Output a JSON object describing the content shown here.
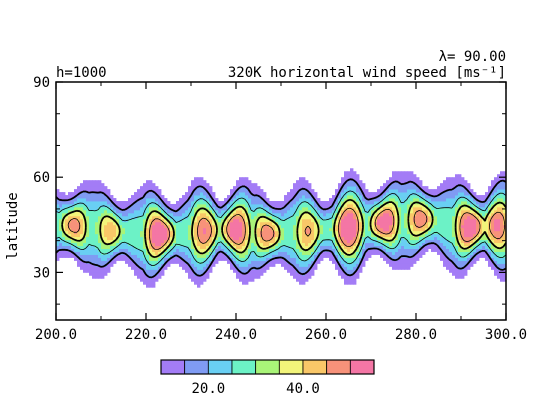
{
  "chart_data": {
    "type": "heatmap",
    "title": "320K horizontal wind speed [ms⁻¹]",
    "header_left": "h=1000",
    "header_right": "λ=  90.00",
    "ylabel": "latitude",
    "xlabel": "",
    "xlim": [
      200,
      300
    ],
    "ylim": [
      15,
      90
    ],
    "xticks": [
      200,
      220,
      240,
      260,
      280,
      300
    ],
    "xtick_labels": [
      "200.0",
      "220.0",
      "240.0",
      "260.0",
      "280.0",
      "300.0"
    ],
    "yticks": [
      30,
      60,
      90
    ],
    "ytick_labels": [
      "30",
      "60",
      "90"
    ],
    "contour_levels": [
      10,
      15,
      20,
      25,
      30,
      35,
      40,
      45,
      50
    ],
    "level_colors": [
      "#a37cf6",
      "#7f9bf3",
      "#69cff3",
      "#6cf2c6",
      "#a9f478",
      "#f2f47a",
      "#f9c768",
      "#f7927a",
      "#f476a5"
    ],
    "colorbar_labels": [
      20,
      40
    ],
    "colorbar_label_text": [
      "20.0",
      "40.0"
    ],
    "jet": {
      "base_latitude": 44,
      "base_width": 9,
      "speed_floor": 6,
      "cores": [
        {
          "lon": 204,
          "lat": 45,
          "peak": 43
        },
        {
          "lon": 212,
          "lat": 43,
          "peak": 38
        },
        {
          "lon": 223,
          "lat": 42,
          "peak": 52
        },
        {
          "lon": 233,
          "lat": 43,
          "peak": 45
        },
        {
          "lon": 240,
          "lat": 44,
          "peak": 50
        },
        {
          "lon": 247,
          "lat": 42,
          "peak": 44
        },
        {
          "lon": 256,
          "lat": 43,
          "peak": 40
        },
        {
          "lon": 265,
          "lat": 44,
          "peak": 52
        },
        {
          "lon": 273,
          "lat": 46,
          "peak": 50
        },
        {
          "lon": 281,
          "lat": 47,
          "peak": 44
        },
        {
          "lon": 292,
          "lat": 44,
          "peak": 52
        },
        {
          "lon": 298,
          "lat": 45,
          "peak": 46
        }
      ]
    }
  }
}
